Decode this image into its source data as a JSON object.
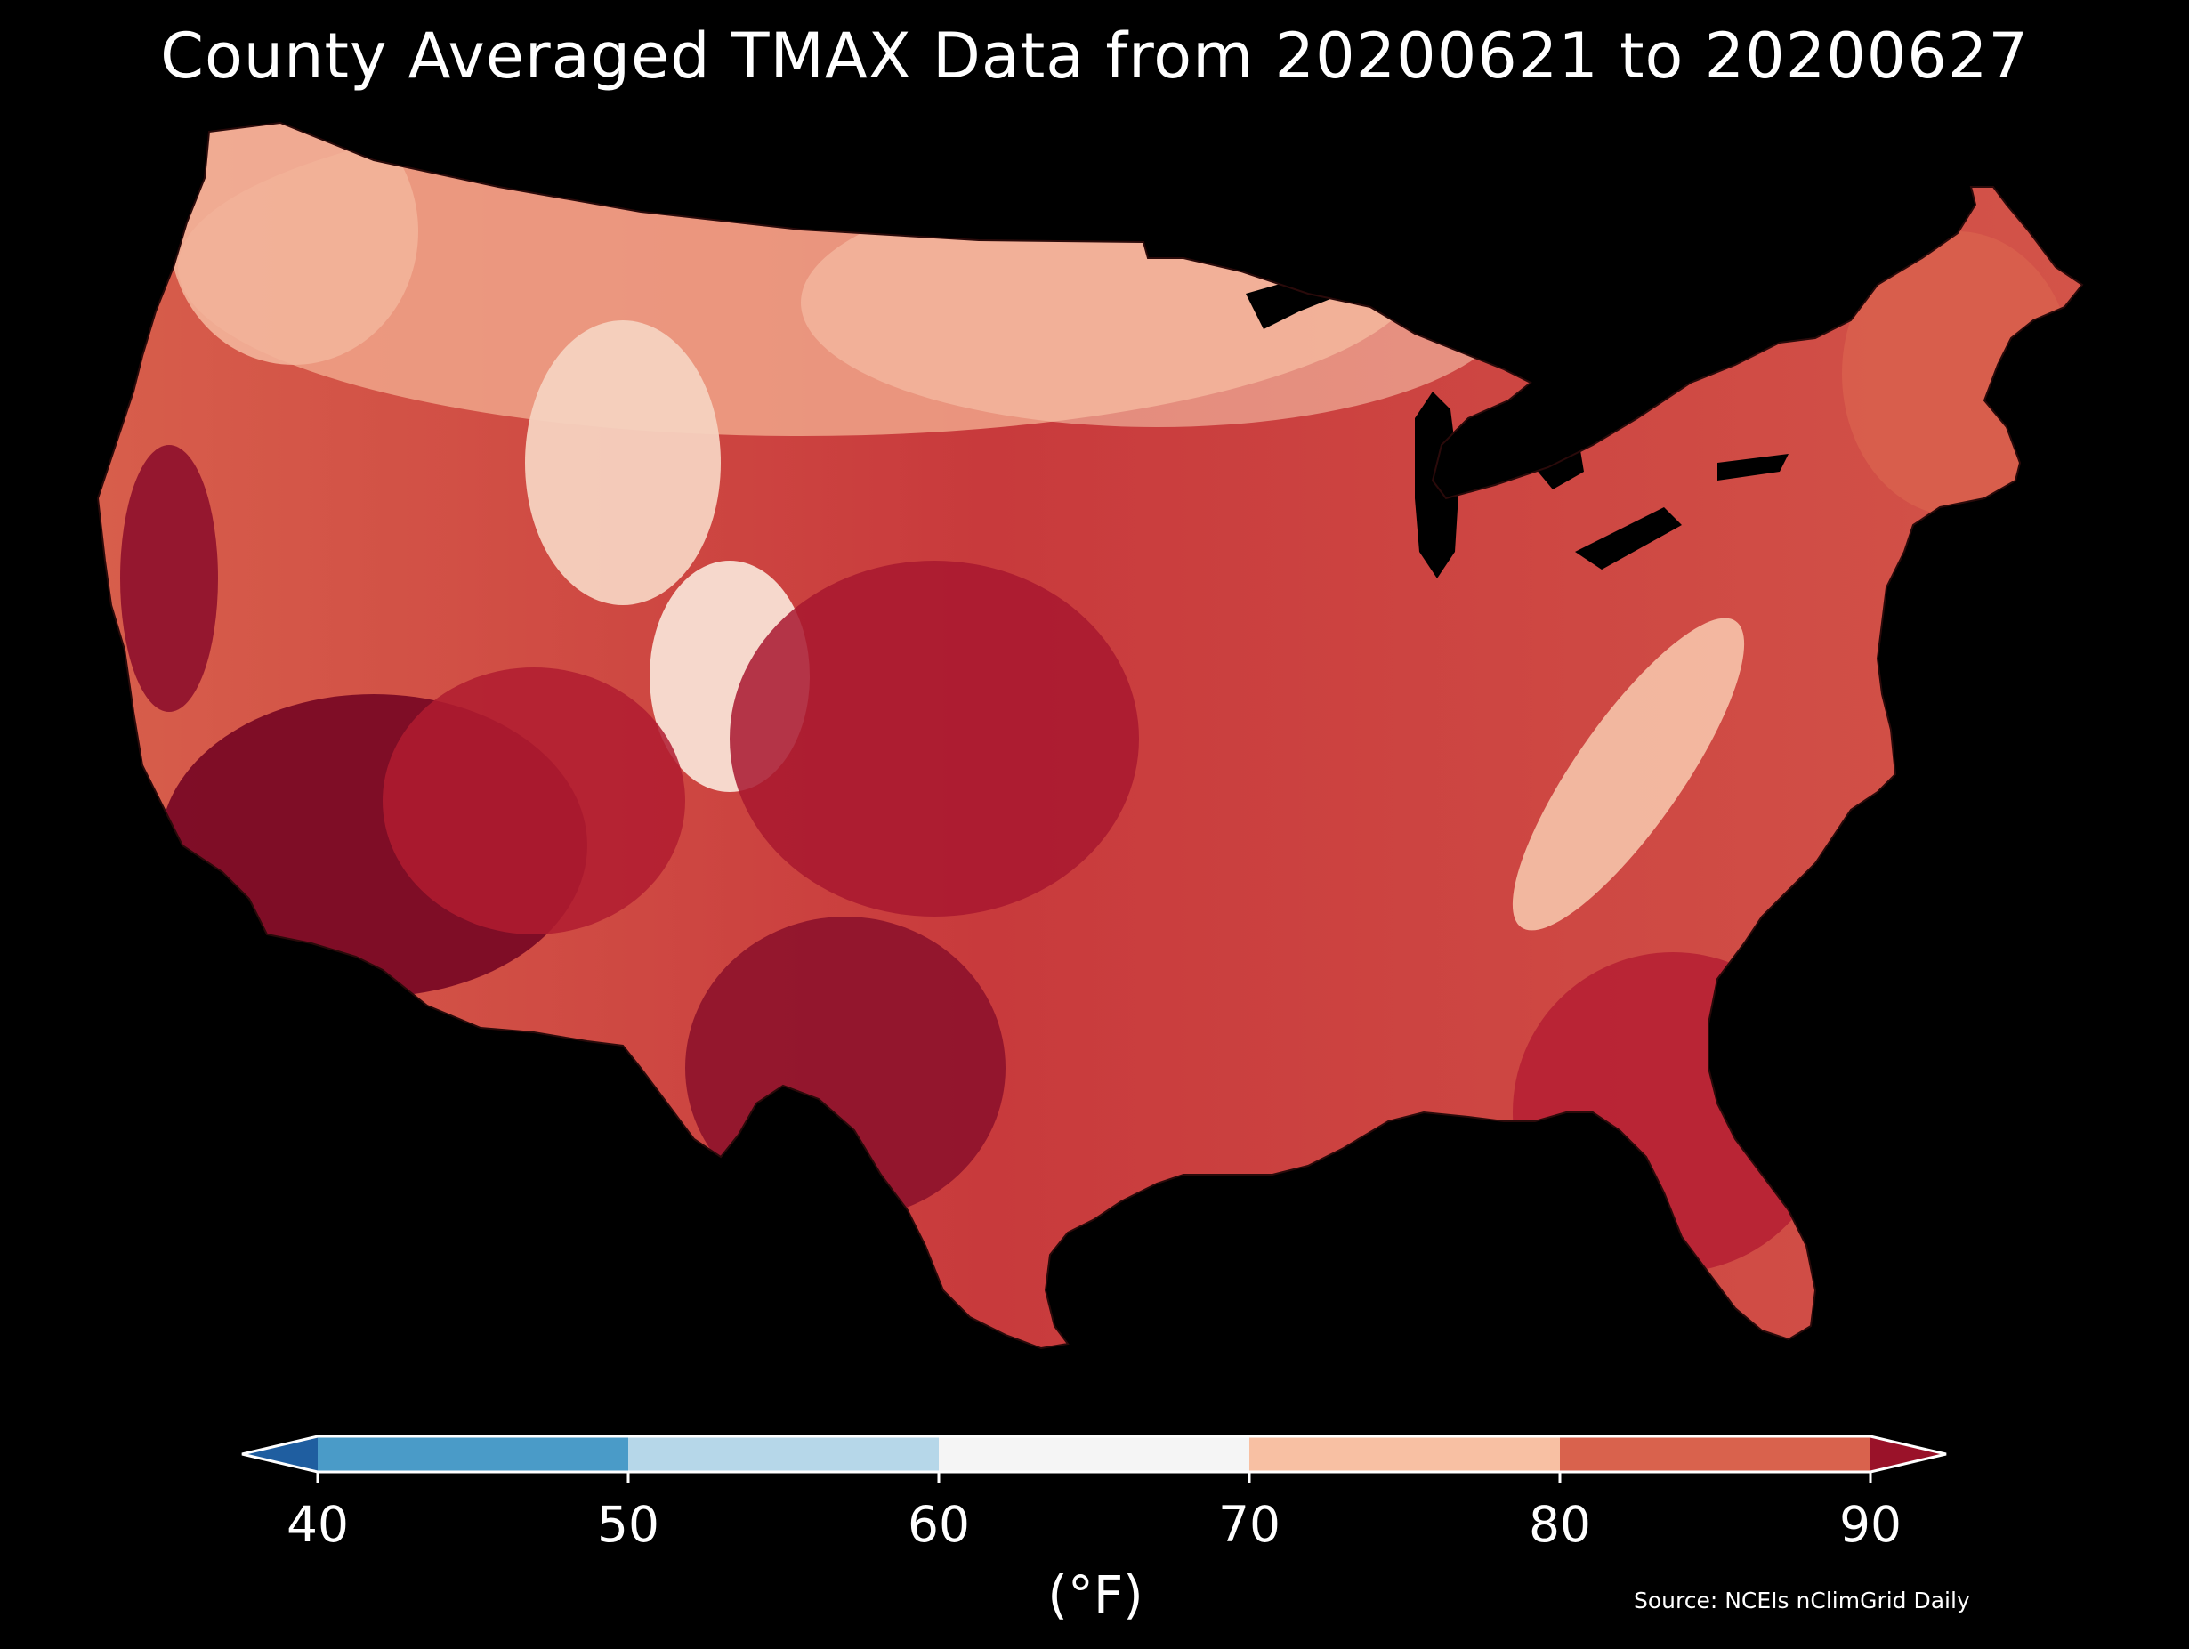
{
  "title": "County Averaged TMAX Data from 20200621 to 20200627",
  "source": "Source: NCEIs nClimGrid Daily",
  "colorbar": {
    "unit_label": "(°F)",
    "ticks": [
      "40",
      "50",
      "60",
      "70",
      "80",
      "90"
    ],
    "extend": "both",
    "bins": [
      {
        "from": null,
        "to": 40,
        "color": "#1f5ea0"
      },
      {
        "from": 40,
        "to": 50,
        "color": "#4a9bc8"
      },
      {
        "from": 50,
        "to": 60,
        "color": "#b6d7e9"
      },
      {
        "from": 60,
        "to": 70,
        "color": "#f5f5f5"
      },
      {
        "from": 70,
        "to": 80,
        "color": "#f8c0a3"
      },
      {
        "from": 80,
        "to": 90,
        "color": "#d9624d"
      },
      {
        "from": 90,
        "to": null,
        "color": "#9a1229"
      }
    ]
  },
  "map": {
    "region": "Contiguous United States counties",
    "background": "#000000",
    "water_color": "#000000",
    "border_color": "#1a1a1a"
  }
}
